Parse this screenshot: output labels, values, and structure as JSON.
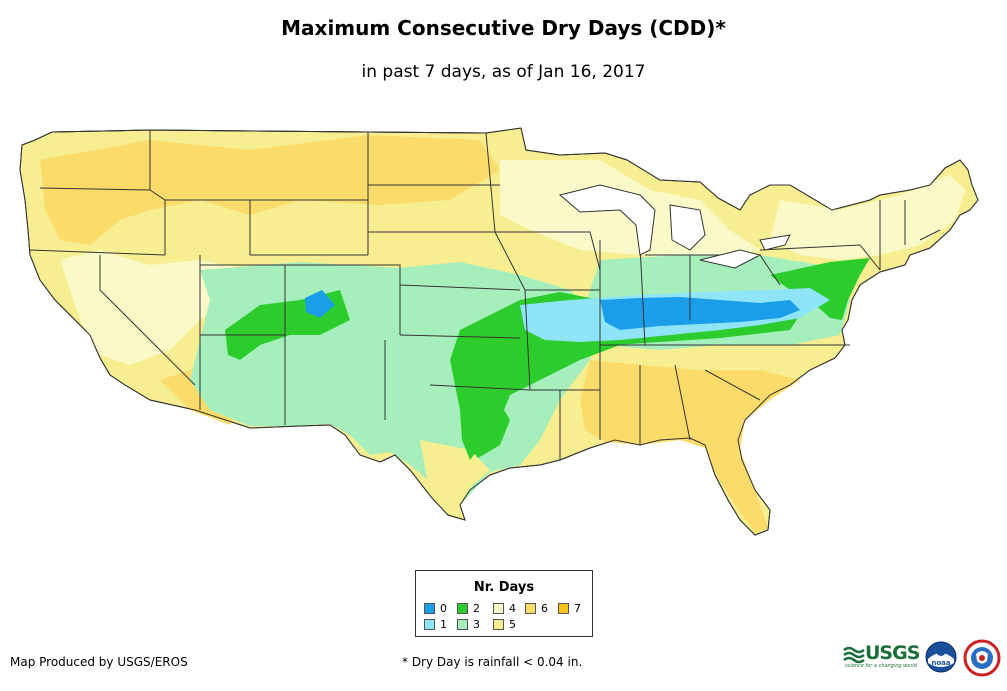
{
  "title": "Maximum Consecutive Dry Days (CDD)*",
  "subtitle": "in past 7 days, as of Jan 16, 2017",
  "legend": {
    "title": "Nr. Days",
    "items": [
      {
        "label": "0",
        "color": "#1a9ee8"
      },
      {
        "label": "1",
        "color": "#8fe4f8"
      },
      {
        "label": "2",
        "color": "#2ccc2c"
      },
      {
        "label": "3",
        "color": "#a6efbd"
      },
      {
        "label": "4",
        "color": "#fafac8"
      },
      {
        "label": "5",
        "color": "#f6ee90"
      },
      {
        "label": "6",
        "color": "#fbdc6a"
      },
      {
        "label": "7",
        "color": "#f7c31b"
      }
    ]
  },
  "credit": "Map Produced by USGS/EROS",
  "footnote": "* Dry Day is rainfall < 0.04 in.",
  "logos": {
    "usgs": "USGS",
    "usgs_tagline": "science for a changing world",
    "noaa": "noaa"
  },
  "colors": {
    "border": "#333333"
  }
}
